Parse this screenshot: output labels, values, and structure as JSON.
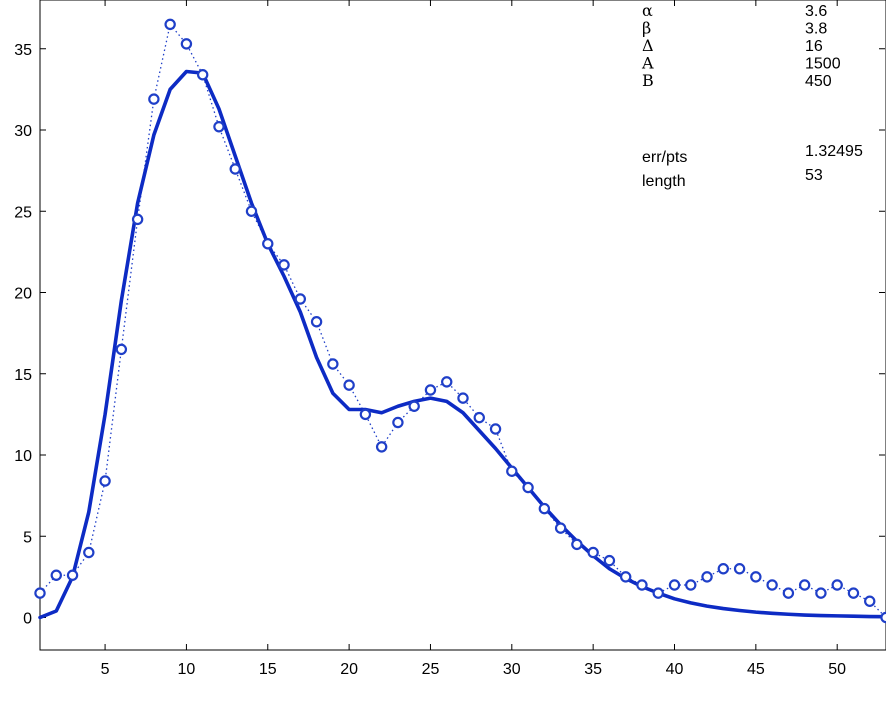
{
  "chart_data": {
    "type": "line",
    "xlim": [
      1,
      53
    ],
    "ylim": [
      -2,
      38
    ],
    "x_ticks": [
      5,
      10,
      15,
      20,
      25,
      30,
      35,
      40,
      45,
      50
    ],
    "y_ticks": [
      0,
      5,
      10,
      15,
      20,
      25,
      30,
      35
    ],
    "grid": false,
    "series": [
      {
        "style": "dotted line with circle markers",
        "color": "#1f3fc8",
        "x": [
          1,
          2,
          3,
          4,
          5,
          6,
          7,
          8,
          9,
          10,
          11,
          12,
          13,
          14,
          15,
          16,
          17,
          18,
          19,
          20,
          21,
          22,
          23,
          24,
          25,
          26,
          27,
          28,
          29,
          30,
          31,
          32,
          33,
          34,
          35,
          36,
          37,
          38,
          39,
          40,
          41,
          42,
          43,
          44,
          45,
          46,
          47,
          48,
          49,
          50,
          51,
          52,
          53
        ],
        "y": [
          1.5,
          2.6,
          2.6,
          4.0,
          8.4,
          16.5,
          24.5,
          31.9,
          36.5,
          35.3,
          33.4,
          30.2,
          27.6,
          25.0,
          23.0,
          21.7,
          19.6,
          18.2,
          15.6,
          14.3,
          12.5,
          10.5,
          12.0,
          13.0,
          14.0,
          14.5,
          13.5,
          12.3,
          11.6,
          9.0,
          8.0,
          6.7,
          5.5,
          4.5,
          4.0,
          3.5,
          2.5,
          2.0,
          1.5,
          2.0,
          2.0,
          2.5,
          3.0,
          3.0,
          2.5,
          2.0,
          1.5,
          2.0,
          1.5,
          2.0,
          1.5,
          1.0,
          0.0
        ]
      },
      {
        "style": "thick solid line (fit)",
        "color": "#0d2bc4",
        "x": [
          1,
          2,
          3,
          4,
          5,
          6,
          7,
          8,
          9,
          10,
          11,
          12,
          13,
          14,
          15,
          16,
          17,
          18,
          19,
          20,
          21,
          22,
          23,
          24,
          25,
          26,
          27,
          28,
          29,
          30,
          31,
          32,
          33,
          34,
          35,
          36,
          37,
          38,
          39,
          40,
          41,
          42,
          43,
          44,
          45,
          46,
          47,
          48,
          49,
          50,
          51,
          52,
          53
        ],
        "y": [
          0.0,
          0.4,
          2.5,
          6.5,
          12.5,
          19.5,
          25.5,
          29.7,
          32.5,
          33.6,
          33.5,
          31.3,
          28.4,
          25.5,
          23.0,
          21.0,
          18.8,
          16.0,
          13.8,
          12.8,
          12.8,
          12.6,
          13.0,
          13.3,
          13.5,
          13.3,
          12.6,
          11.5,
          10.4,
          9.2,
          8.0,
          6.8,
          5.7,
          4.7,
          3.8,
          3.0,
          2.4,
          1.9,
          1.5,
          1.15,
          0.9,
          0.7,
          0.55,
          0.43,
          0.33,
          0.26,
          0.2,
          0.15,
          0.12,
          0.1,
          0.08,
          0.06,
          0.05
        ]
      }
    ]
  },
  "annotation": {
    "params": [
      {
        "symbol": "α",
        "value": "3.6"
      },
      {
        "symbol": "β",
        "value": "3.8"
      },
      {
        "symbol": "Δ",
        "value": "16"
      },
      {
        "symbol": "A",
        "value": "1500"
      },
      {
        "symbol": "B",
        "value": "450"
      }
    ],
    "stats": [
      {
        "label": "err/pts",
        "value": "1.32495"
      },
      {
        "label": "length",
        "value": "53"
      }
    ]
  }
}
